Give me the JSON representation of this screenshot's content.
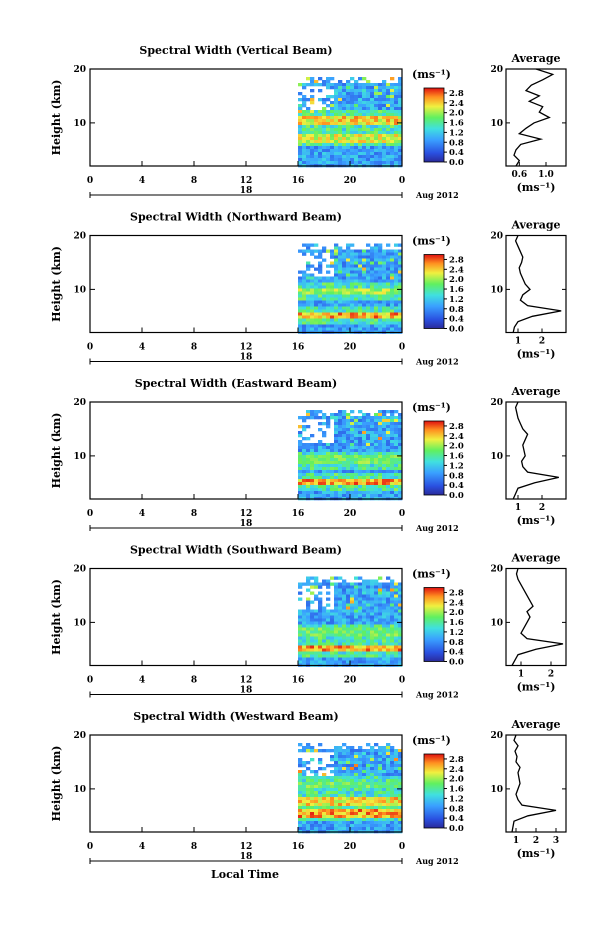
{
  "chart_data": [
    {
      "type": "heatmap",
      "title": "Spectral Width (Vertical Beam)",
      "ylabel": "Height (km)",
      "y_ticks": [
        "20",
        "10"
      ],
      "x_ticks": [
        "0",
        "4",
        "8",
        "12",
        "16",
        "20",
        "0"
      ],
      "day_label": "18",
      "date_label": "Aug 2012",
      "colorbar_unit": "(ms⁻¹)",
      "colorbar_ticks": [
        "2.8",
        "2.4",
        "2.0",
        "1.6",
        "1.2",
        "0.8",
        "0.4",
        "0.0"
      ],
      "zlim": [
        0,
        3
      ],
      "data_start_hour": 16,
      "hot_layers": [
        {
          "height_km": 10.8,
          "value": 2.6
        },
        {
          "height_km": 7.5,
          "value": 2.4
        }
      ],
      "profile": {
        "title": "Average",
        "xlabel": "(ms⁻¹)",
        "x_ticks": [
          "0.6",
          "1.0"
        ],
        "xlim": [
          0.4,
          1.3
        ],
        "y_ticks": [
          "20",
          "10"
        ],
        "heights": [
          2,
          3,
          4,
          5,
          6,
          7,
          8,
          9,
          10,
          11,
          12,
          13,
          14,
          15,
          16,
          17,
          18,
          19,
          20
        ],
        "values": [
          0.55,
          0.6,
          0.52,
          0.55,
          0.62,
          0.92,
          0.6,
          0.7,
          0.82,
          1.05,
          0.9,
          0.95,
          0.75,
          0.9,
          0.7,
          0.78,
          0.95,
          1.1,
          0.85
        ]
      }
    },
    {
      "type": "heatmap",
      "title": "Spectral Width (Northward Beam)",
      "ylabel": "Height (km)",
      "y_ticks": [
        "20",
        "10"
      ],
      "x_ticks": [
        "0",
        "4",
        "8",
        "12",
        "16",
        "20",
        "0"
      ],
      "day_label": "18",
      "date_label": "Aug 2012",
      "colorbar_unit": "(ms⁻¹)",
      "colorbar_ticks": [
        "2.8",
        "2.4",
        "2.0",
        "1.6",
        "1.2",
        "0.8",
        "0.4",
        "0.0"
      ],
      "zlim": [
        0,
        3
      ],
      "data_start_hour": 16,
      "hot_layers": [
        {
          "height_km": 5.5,
          "value": 2.8
        },
        {
          "height_km": 10.0,
          "value": 2.2
        }
      ],
      "profile": {
        "title": "Average",
        "xlabel": "(ms⁻¹)",
        "x_ticks": [
          "1",
          "2"
        ],
        "xlim": [
          0.5,
          3.0
        ],
        "y_ticks": [
          "20",
          "10"
        ],
        "heights": [
          2,
          3,
          4,
          5,
          6,
          7,
          8,
          9,
          10,
          11,
          12,
          13,
          14,
          15,
          16,
          17,
          18,
          19,
          20
        ],
        "values": [
          0.8,
          0.85,
          1.0,
          1.6,
          2.8,
          1.4,
          1.1,
          1.2,
          1.5,
          1.3,
          1.2,
          1.1,
          1.05,
          1.15,
          1.2,
          1.1,
          1.0,
          0.9,
          1.0
        ]
      }
    },
    {
      "type": "heatmap",
      "title": "Spectral Width (Eastward Beam)",
      "ylabel": "Height (km)",
      "y_ticks": [
        "20",
        "10"
      ],
      "x_ticks": [
        "0",
        "4",
        "8",
        "12",
        "16",
        "20",
        "0"
      ],
      "day_label": "18",
      "date_label": "Aug 2012",
      "colorbar_unit": "(ms⁻¹)",
      "colorbar_ticks": [
        "2.8",
        "2.4",
        "2.0",
        "1.6",
        "1.2",
        "0.8",
        "0.4",
        "0.0"
      ],
      "zlim": [
        0,
        3
      ],
      "data_start_hour": 16,
      "hot_layers": [
        {
          "height_km": 5.4,
          "value": 2.8
        },
        {
          "height_km": 9.5,
          "value": 2.0
        }
      ],
      "profile": {
        "title": "Average",
        "xlabel": "(ms⁻¹)",
        "x_ticks": [
          "1",
          "2"
        ],
        "xlim": [
          0.5,
          3.0
        ],
        "y_ticks": [
          "20",
          "10"
        ],
        "heights": [
          2,
          3,
          4,
          5,
          6,
          7,
          8,
          9,
          10,
          11,
          12,
          13,
          14,
          15,
          16,
          17,
          18,
          19,
          20
        ],
        "values": [
          0.8,
          0.9,
          1.0,
          1.7,
          2.7,
          1.4,
          1.2,
          1.15,
          1.3,
          1.25,
          1.2,
          1.3,
          1.4,
          1.2,
          1.1,
          1.0,
          0.95,
          0.9,
          1.0
        ]
      }
    },
    {
      "type": "heatmap",
      "title": "Spectral Width (Southward Beam)",
      "ylabel": "Height (km)",
      "y_ticks": [
        "20",
        "10"
      ],
      "x_ticks": [
        "0",
        "4",
        "8",
        "12",
        "16",
        "20",
        "0"
      ],
      "day_label": "18",
      "date_label": "Aug 2012",
      "colorbar_unit": "(ms⁻¹)",
      "colorbar_ticks": [
        "2.8",
        "2.4",
        "2.0",
        "1.6",
        "1.2",
        "0.8",
        "0.4",
        "0.0"
      ],
      "zlim": [
        0,
        3
      ],
      "data_start_hour": 16,
      "hot_layers": [
        {
          "height_km": 5.4,
          "value": 2.8
        },
        {
          "height_km": 8.5,
          "value": 2.0
        }
      ],
      "profile": {
        "title": "Average",
        "xlabel": "(ms⁻¹)",
        "x_ticks": [
          "1",
          "2"
        ],
        "xlim": [
          0.5,
          2.5
        ],
        "y_ticks": [
          "20",
          "10"
        ],
        "heights": [
          2,
          3,
          4,
          5,
          6,
          7,
          8,
          9,
          10,
          11,
          12,
          13,
          14,
          15,
          16,
          17,
          18,
          19,
          20
        ],
        "values": [
          0.7,
          0.8,
          0.9,
          1.5,
          2.4,
          1.2,
          1.0,
          1.1,
          1.2,
          1.3,
          1.2,
          1.4,
          1.3,
          1.2,
          1.1,
          1.0,
          0.9,
          0.85,
          0.9
        ]
      }
    },
    {
      "type": "heatmap",
      "title": "Spectral Width (Westward Beam)",
      "ylabel": "Height (km)",
      "y_ticks": [
        "20",
        "10"
      ],
      "x_ticks": [
        "0",
        "4",
        "8",
        "12",
        "16",
        "20",
        "0"
      ],
      "day_label": "18",
      "date_label": "Aug 2012",
      "colorbar_unit": "(ms⁻¹)",
      "colorbar_ticks": [
        "2.8",
        "2.4",
        "2.0",
        "1.6",
        "1.2",
        "0.8",
        "0.4",
        "0.0"
      ],
      "zlim": [
        0,
        3
      ],
      "data_start_hour": 16,
      "hot_layers": [
        {
          "height_km": 5.8,
          "value": 2.8
        },
        {
          "height_km": 8.0,
          "value": 2.6
        },
        {
          "height_km": 11.0,
          "value": 2.0
        }
      ],
      "profile": {
        "title": "Average",
        "xlabel": "(ms⁻¹)",
        "x_ticks": [
          "1",
          "2",
          "3"
        ],
        "xlim": [
          0.5,
          3.5
        ],
        "y_ticks": [
          "20",
          "10"
        ],
        "heights": [
          2,
          3,
          4,
          5,
          6,
          7,
          8,
          9,
          10,
          11,
          12,
          13,
          14,
          15,
          16,
          17,
          18,
          19,
          20
        ],
        "values": [
          0.8,
          0.85,
          0.9,
          1.6,
          3.0,
          1.3,
          1.1,
          1.0,
          1.1,
          1.2,
          1.15,
          1.1,
          1.2,
          1.0,
          1.05,
          0.95,
          1.1,
          0.9,
          1.0
        ]
      }
    }
  ],
  "bottom_xlabel": "Local Time"
}
